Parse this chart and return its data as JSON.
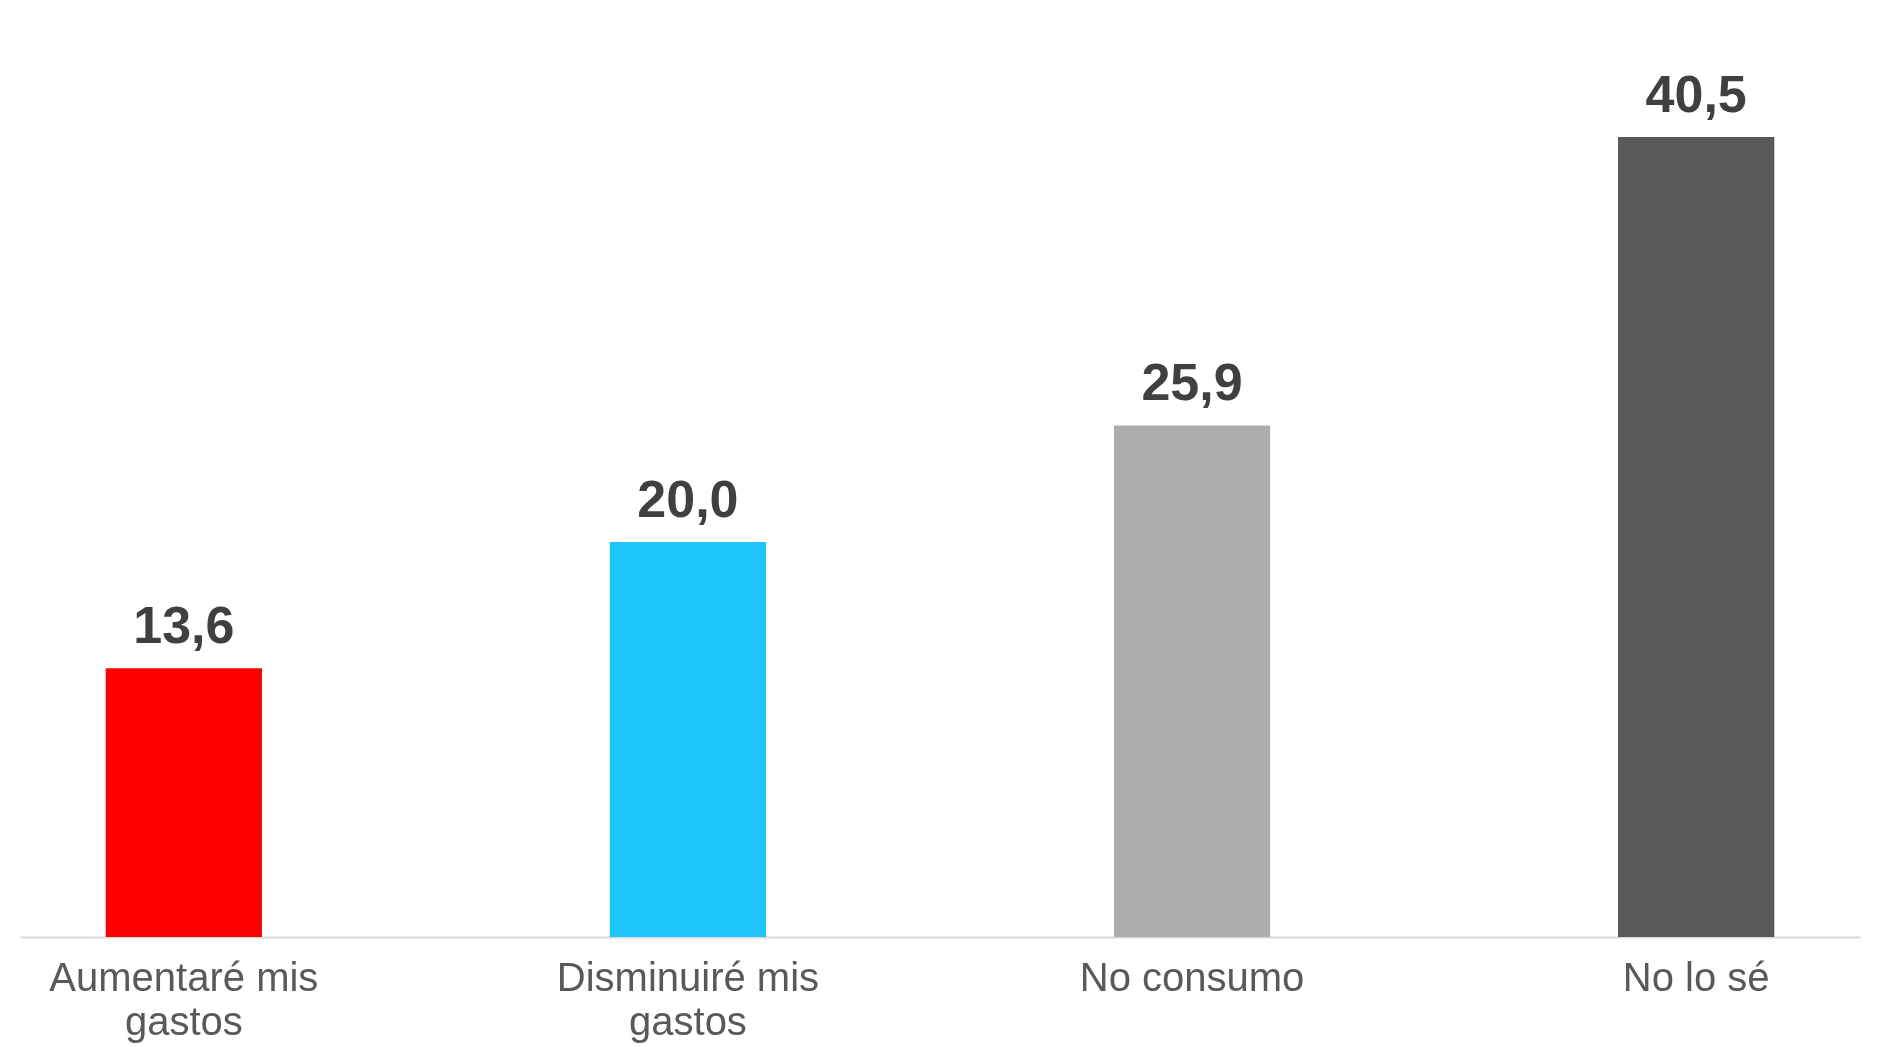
{
  "chart_data": {
    "type": "bar",
    "categories": [
      "Aumentaré mis gastos",
      "Disminuiré mis gastos",
      "No consumo",
      "No lo sé"
    ],
    "values": [
      13.6,
      20.0,
      25.9,
      40.5
    ],
    "colors": [
      "#ff0000",
      "#1ec5fc",
      "#adadac",
      "#595959"
    ],
    "value_labels": [
      "13,6",
      "20,0",
      "25,9",
      "40,5"
    ]
  }
}
